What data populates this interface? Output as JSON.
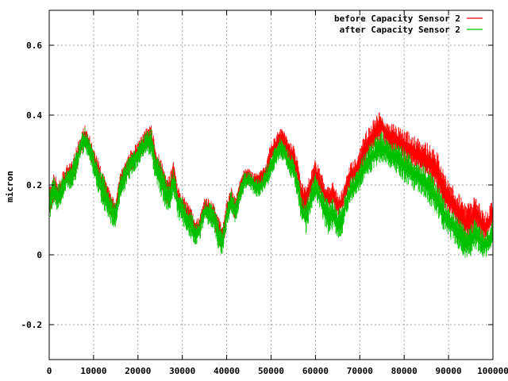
{
  "chart_data": {
    "type": "line",
    "title": "",
    "xlabel": "",
    "ylabel": "micron",
    "xlim": [
      0,
      100000
    ],
    "ylim": [
      -0.3,
      0.7
    ],
    "grid": true,
    "legend_position": "top-right",
    "x_ticks": [
      0,
      10000,
      20000,
      30000,
      40000,
      50000,
      60000,
      70000,
      80000,
      90000,
      100000
    ],
    "x_tick_labels": [
      "0",
      "10000",
      "20000",
      "30000",
      "40000",
      "50000",
      "60000",
      "70000",
      "80000",
      "90000",
      "100000"
    ],
    "y_ticks": [
      -0.2,
      0,
      0.2,
      0.4,
      0.6
    ],
    "y_tick_labels": [
      "-0.2",
      "0",
      "0.2",
      "0.4",
      "0.6"
    ],
    "series": [
      {
        "name": "before Capacity Sensor 2",
        "color": "#ff0000",
        "x": [
          0,
          1000,
          2000,
          3000,
          4000,
          5000,
          6000,
          7000,
          8000,
          9000,
          10000,
          12000,
          14000,
          15000,
          16000,
          18000,
          20000,
          22000,
          23000,
          24000,
          26000,
          27000,
          28000,
          29000,
          30000,
          32000,
          33000,
          34000,
          35000,
          37000,
          38000,
          39000,
          40000,
          41000,
          42000,
          43000,
          44000,
          45000,
          46000,
          47000,
          48000,
          49000,
          50000,
          51000,
          52000,
          53000,
          54000,
          55000,
          56000,
          57000,
          58000,
          59000,
          60000,
          61000,
          62000,
          63000,
          64000,
          65000,
          66000,
          67000,
          68000,
          69000,
          70000,
          71000,
          72000,
          73000,
          74000,
          75000,
          76000,
          77000,
          78000,
          79000,
          80000,
          81000,
          82000,
          83000,
          84000,
          85000,
          86000,
          87000,
          88000,
          89000,
          90000,
          91000,
          92000,
          93000,
          94000,
          95000,
          96000,
          97000,
          98000,
          99000,
          100000
        ],
        "low": [
          0.1,
          0.15,
          0.12,
          0.16,
          0.2,
          0.19,
          0.22,
          0.28,
          0.3,
          0.28,
          0.24,
          0.15,
          0.1,
          0.1,
          0.17,
          0.22,
          0.26,
          0.3,
          0.28,
          0.22,
          0.15,
          0.13,
          0.2,
          0.12,
          0.1,
          0.06,
          0.04,
          0.06,
          0.1,
          0.08,
          0.03,
          0.0,
          0.08,
          0.13,
          0.09,
          0.15,
          0.19,
          0.2,
          0.18,
          0.18,
          0.19,
          0.2,
          0.25,
          0.27,
          0.3,
          0.29,
          0.25,
          0.24,
          0.2,
          0.1,
          0.1,
          0.16,
          0.19,
          0.16,
          0.12,
          0.12,
          0.14,
          0.09,
          0.11,
          0.16,
          0.19,
          0.2,
          0.22,
          0.25,
          0.27,
          0.29,
          0.31,
          0.32,
          0.3,
          0.29,
          0.28,
          0.27,
          0.26,
          0.25,
          0.24,
          0.23,
          0.22,
          0.21,
          0.2,
          0.18,
          0.15,
          0.12,
          0.1,
          0.09,
          0.06,
          0.04,
          0.03,
          0.04,
          0.06,
          0.05,
          0.02,
          0.04,
          0.08
        ],
        "high": [
          0.2,
          0.24,
          0.22,
          0.24,
          0.26,
          0.27,
          0.31,
          0.35,
          0.38,
          0.35,
          0.31,
          0.25,
          0.18,
          0.16,
          0.24,
          0.3,
          0.33,
          0.37,
          0.38,
          0.32,
          0.25,
          0.23,
          0.27,
          0.2,
          0.18,
          0.14,
          0.1,
          0.12,
          0.17,
          0.16,
          0.12,
          0.09,
          0.16,
          0.2,
          0.17,
          0.22,
          0.25,
          0.25,
          0.24,
          0.24,
          0.25,
          0.28,
          0.33,
          0.35,
          0.37,
          0.36,
          0.33,
          0.32,
          0.28,
          0.21,
          0.2,
          0.25,
          0.28,
          0.25,
          0.22,
          0.2,
          0.22,
          0.18,
          0.19,
          0.23,
          0.27,
          0.28,
          0.31,
          0.35,
          0.37,
          0.39,
          0.41,
          0.42,
          0.39,
          0.38,
          0.38,
          0.37,
          0.36,
          0.36,
          0.35,
          0.34,
          0.33,
          0.33,
          0.32,
          0.31,
          0.29,
          0.25,
          0.22,
          0.21,
          0.19,
          0.17,
          0.15,
          0.16,
          0.18,
          0.15,
          0.13,
          0.14,
          0.17
        ]
      },
      {
        "name": "after Capacity Sensor 2",
        "color": "#00c000",
        "x": [
          0,
          1000,
          2000,
          3000,
          4000,
          5000,
          6000,
          7000,
          8000,
          9000,
          10000,
          12000,
          14000,
          15000,
          16000,
          18000,
          20000,
          22000,
          23000,
          24000,
          26000,
          27000,
          28000,
          29000,
          30000,
          32000,
          33000,
          34000,
          35000,
          37000,
          38000,
          39000,
          40000,
          41000,
          42000,
          43000,
          44000,
          45000,
          46000,
          47000,
          48000,
          49000,
          50000,
          51000,
          52000,
          53000,
          54000,
          55000,
          56000,
          57000,
          58000,
          59000,
          60000,
          61000,
          62000,
          63000,
          64000,
          65000,
          66000,
          67000,
          68000,
          69000,
          70000,
          71000,
          72000,
          73000,
          74000,
          75000,
          76000,
          77000,
          78000,
          79000,
          80000,
          81000,
          82000,
          83000,
          84000,
          85000,
          86000,
          87000,
          88000,
          89000,
          90000,
          91000,
          92000,
          93000,
          94000,
          95000,
          96000,
          97000,
          98000,
          99000,
          100000
        ],
        "low": [
          0.09,
          0.14,
          0.11,
          0.15,
          0.19,
          0.18,
          0.21,
          0.27,
          0.29,
          0.27,
          0.22,
          0.13,
          0.08,
          0.07,
          0.15,
          0.21,
          0.25,
          0.29,
          0.27,
          0.2,
          0.13,
          0.11,
          0.17,
          0.1,
          0.08,
          0.04,
          0.02,
          0.04,
          0.09,
          0.07,
          0.01,
          -0.01,
          0.07,
          0.12,
          0.08,
          0.14,
          0.18,
          0.19,
          0.17,
          0.16,
          0.17,
          0.18,
          0.22,
          0.24,
          0.27,
          0.26,
          0.22,
          0.21,
          0.15,
          0.07,
          0.05,
          0.12,
          0.15,
          0.12,
          0.08,
          0.05,
          0.07,
          0.04,
          0.05,
          0.11,
          0.14,
          0.16,
          0.18,
          0.2,
          0.22,
          0.24,
          0.25,
          0.26,
          0.25,
          0.24,
          0.23,
          0.22,
          0.2,
          0.19,
          0.18,
          0.17,
          0.16,
          0.15,
          0.13,
          0.11,
          0.09,
          0.06,
          0.04,
          0.03,
          0.01,
          -0.01,
          -0.02,
          -0.01,
          0.01,
          0.0,
          -0.02,
          0.0,
          0.03
        ],
        "high": [
          0.19,
          0.23,
          0.21,
          0.23,
          0.25,
          0.26,
          0.3,
          0.34,
          0.37,
          0.34,
          0.3,
          0.24,
          0.17,
          0.15,
          0.23,
          0.29,
          0.32,
          0.36,
          0.37,
          0.31,
          0.24,
          0.22,
          0.25,
          0.19,
          0.17,
          0.13,
          0.09,
          0.11,
          0.16,
          0.15,
          0.11,
          0.08,
          0.15,
          0.19,
          0.16,
          0.21,
          0.24,
          0.24,
          0.23,
          0.22,
          0.23,
          0.26,
          0.3,
          0.32,
          0.34,
          0.33,
          0.3,
          0.29,
          0.24,
          0.17,
          0.16,
          0.21,
          0.24,
          0.21,
          0.18,
          0.16,
          0.17,
          0.14,
          0.15,
          0.19,
          0.23,
          0.24,
          0.27,
          0.3,
          0.32,
          0.33,
          0.35,
          0.36,
          0.34,
          0.33,
          0.33,
          0.32,
          0.31,
          0.3,
          0.29,
          0.28,
          0.27,
          0.26,
          0.24,
          0.22,
          0.2,
          0.17,
          0.15,
          0.14,
          0.12,
          0.1,
          0.08,
          0.09,
          0.11,
          0.09,
          0.07,
          0.08,
          0.11
        ]
      }
    ]
  }
}
